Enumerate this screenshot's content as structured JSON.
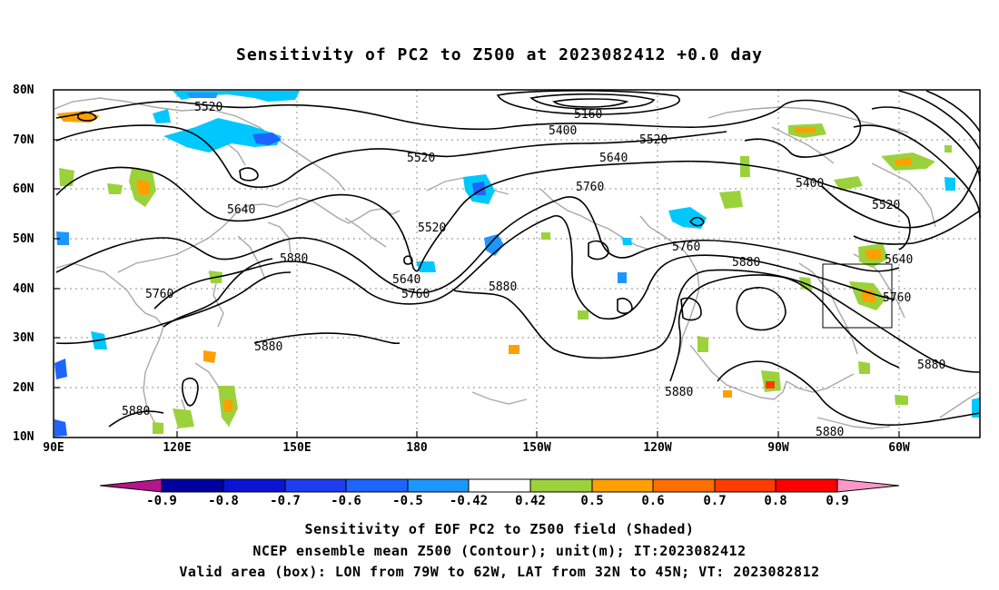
{
  "title": "Sensitivity of PC2 to Z500 at 2023082412 +0.0 day",
  "map": {
    "lat_labels": [
      "80N",
      "70N",
      "60N",
      "50N",
      "40N",
      "30N",
      "20N",
      "10N"
    ],
    "lon_labels": [
      "90E",
      "120E",
      "150E",
      "180",
      "150W",
      "120W",
      "90W",
      "60W"
    ],
    "contour_labels": [
      "5520",
      "5160",
      "5400",
      "5520",
      "5520",
      "5640",
      "5760",
      "5400",
      "5520",
      "5640",
      "5520",
      "5880",
      "5640",
      "5760",
      "5760",
      "5760",
      "5880",
      "5880",
      "5640",
      "5760",
      "5880",
      "5880",
      "5880",
      "5880"
    ],
    "valid_box": {
      "lon_range": [
        "79W",
        "62W"
      ],
      "lat_range": [
        "32N",
        "45N"
      ]
    }
  },
  "colorbar": {
    "labels": [
      "-0.9",
      "-0.8",
      "-0.7",
      "-0.6",
      "-0.5",
      "-0.42",
      "0.42",
      "0.5",
      "0.6",
      "0.7",
      "0.8",
      "0.9"
    ],
    "colors": [
      "#b4148c",
      "#0000a0",
      "#0a14d2",
      "#1e3cf0",
      "#1e64ff",
      "#1e96ff",
      "#00c8ff",
      "#ffffff",
      "#9bd23c",
      "#ffa000",
      "#ff6e00",
      "#ff3c00",
      "#ff0000",
      "#ff96c8"
    ]
  },
  "captions": {
    "line1": "Sensitivity of EOF PC2 to Z500 field (Shaded)",
    "line2": "NCEP ensemble mean Z500 (Contour); unit(m); IT:2023082412",
    "line3": "Valid area (box): LON from 79W to 62W, LAT from 32N to 45N; VT: 2023082812"
  }
}
